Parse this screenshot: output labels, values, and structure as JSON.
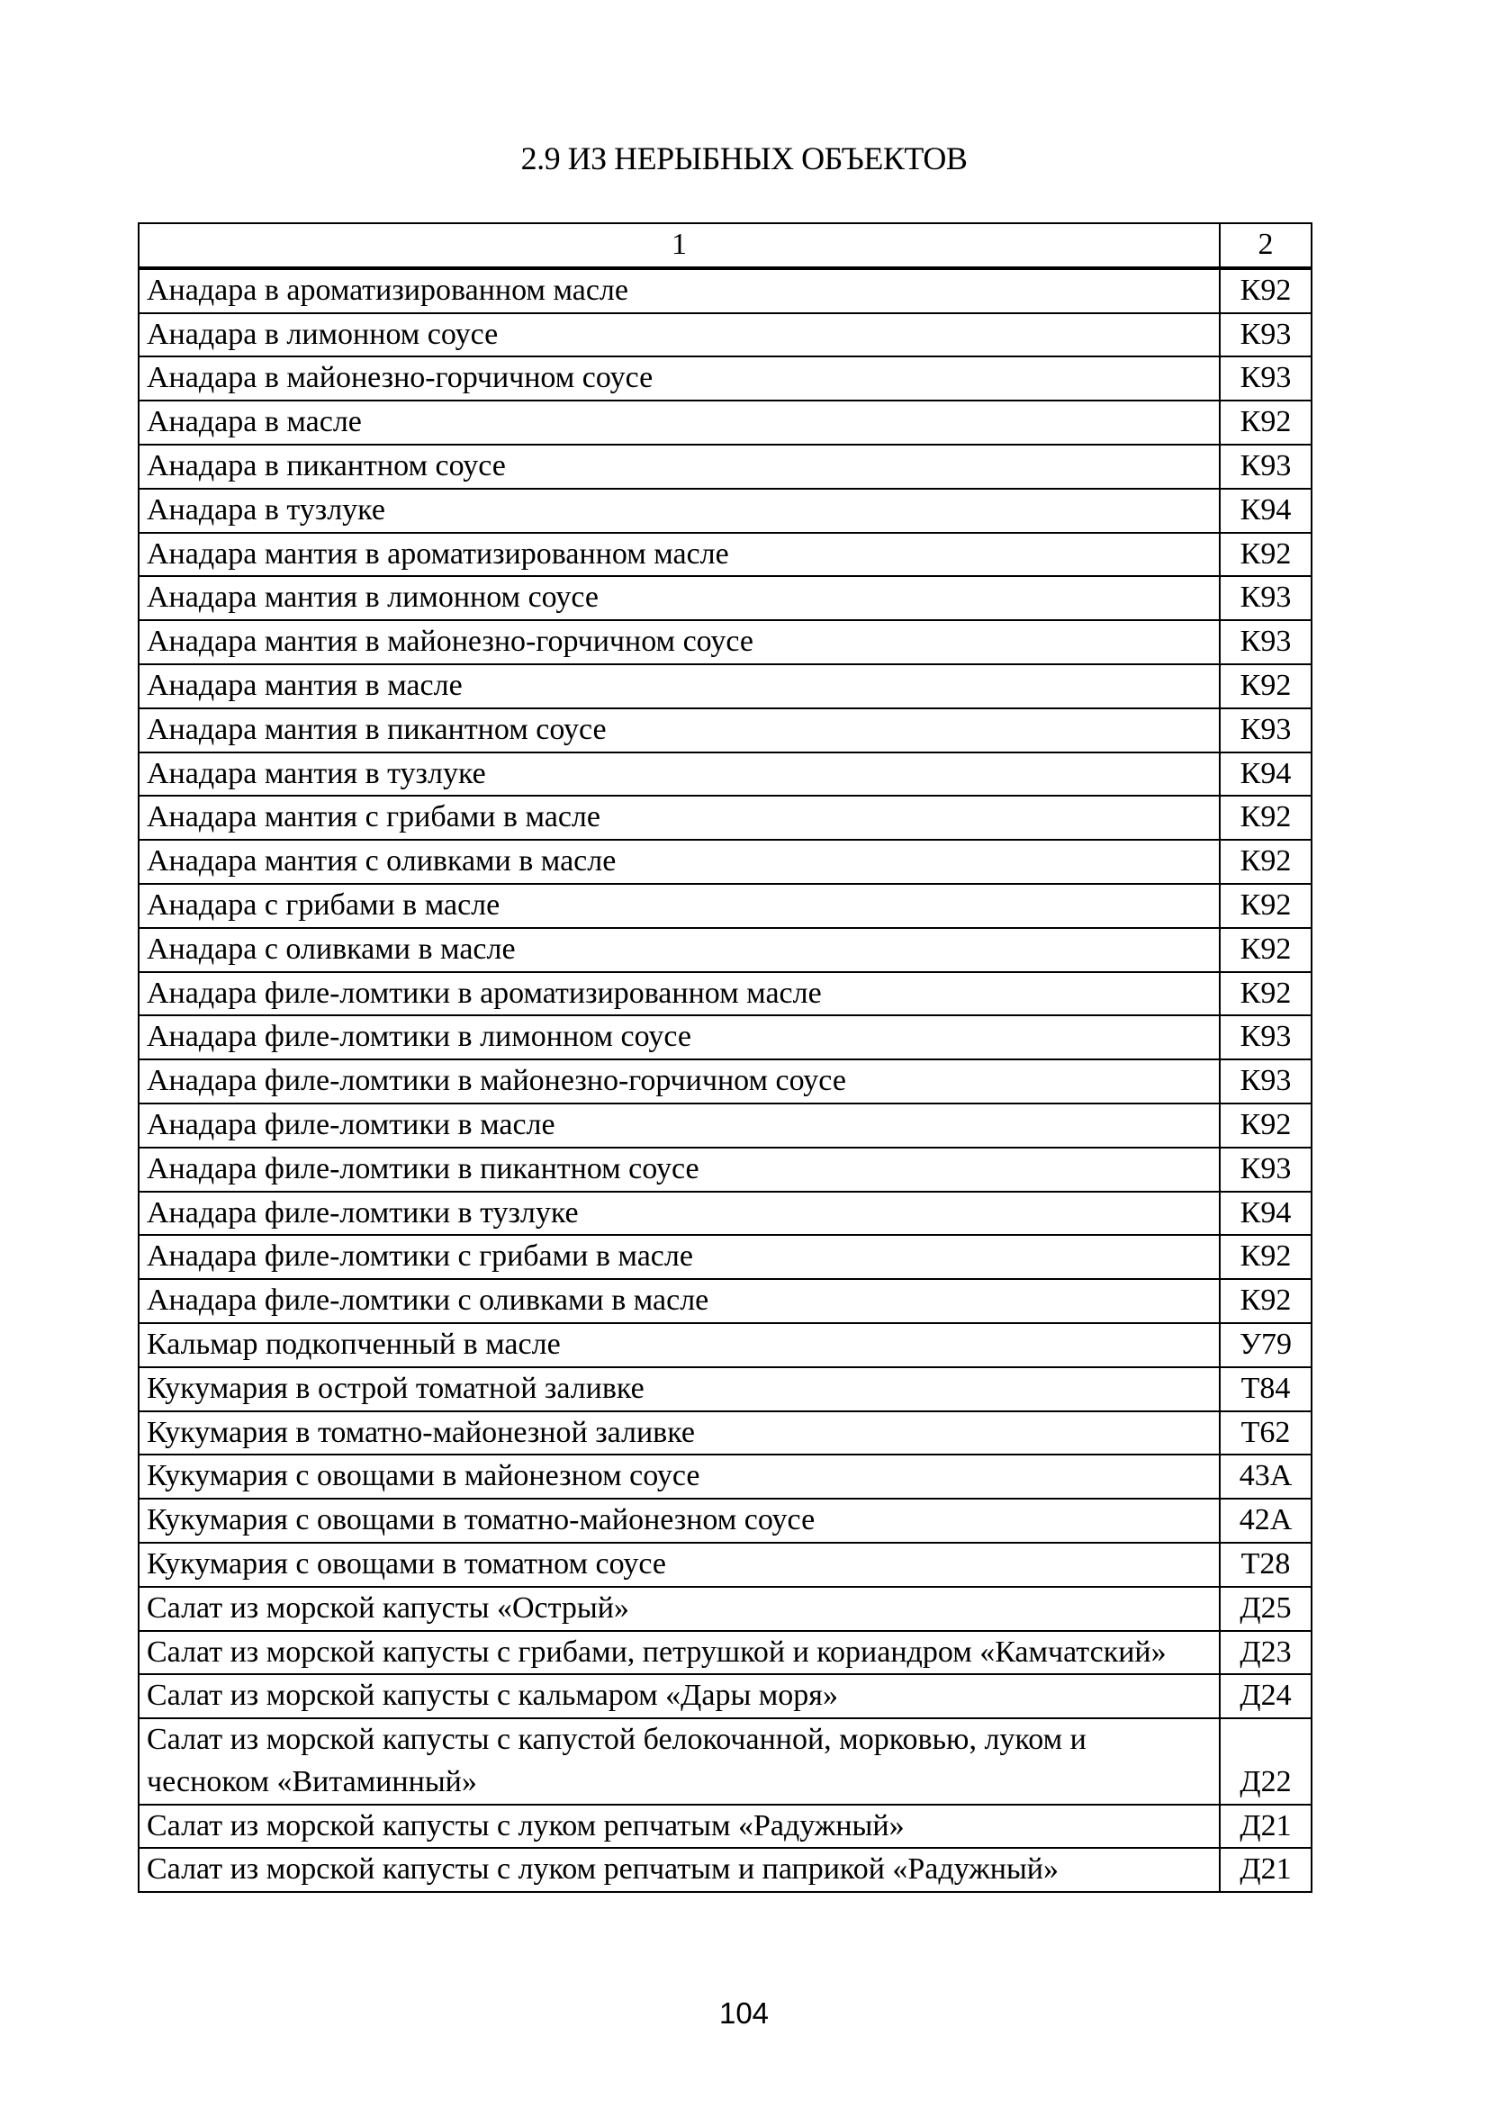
{
  "title": "2.9 ИЗ НЕРЫБНЫХ ОБЪЕКТОВ",
  "table": {
    "headers": [
      "1",
      "2"
    ],
    "rows": [
      [
        "Анадара в ароматизированном масле",
        "К92"
      ],
      [
        "Анадара в лимонном соусе",
        "К93"
      ],
      [
        "Анадара в майонезно-горчичном соусе",
        "К93"
      ],
      [
        "Анадара в масле",
        "К92"
      ],
      [
        "Анадара в пикантном соусе",
        "К93"
      ],
      [
        "Анадара в тузлуке",
        "К94"
      ],
      [
        "Анадара мантия в ароматизированном масле",
        "К92"
      ],
      [
        "Анадара мантия в лимонном соусе",
        "К93"
      ],
      [
        "Анадара мантия в майонезно-горчичном соусе",
        "К93"
      ],
      [
        "Анадара мантия в масле",
        "К92"
      ],
      [
        "Анадара мантия в пикантном соусе",
        "К93"
      ],
      [
        "Анадара мантия в тузлуке",
        "К94"
      ],
      [
        "Анадара мантия с грибами в масле",
        "К92"
      ],
      [
        "Анадара мантия с оливками в масле",
        "К92"
      ],
      [
        "Анадара с грибами в масле",
        "К92"
      ],
      [
        "Анадара с оливками в масле",
        "К92"
      ],
      [
        "Анадара филе-ломтики в ароматизированном масле",
        "К92"
      ],
      [
        "Анадара филе-ломтики в лимонном соусе",
        "К93"
      ],
      [
        "Анадара филе-ломтики в майонезно-горчичном соусе",
        "К93"
      ],
      [
        "Анадара филе-ломтики в масле",
        "К92"
      ],
      [
        "Анадара филе-ломтики в пикантном соусе",
        "К93"
      ],
      [
        "Анадара филе-ломтики в тузлуке",
        "К94"
      ],
      [
        "Анадара филе-ломтики с грибами в масле",
        "К92"
      ],
      [
        "Анадара филе-ломтики с оливками в масле",
        "К92"
      ],
      [
        "Кальмар подкопченный в масле",
        "У79"
      ],
      [
        "Кукумария в острой томатной заливке",
        "Т84"
      ],
      [
        "Кукумария в томатно-майонезной заливке",
        "Т62"
      ],
      [
        "Кукумария с овощами в майонезном соусе",
        "43А"
      ],
      [
        "Кукумария с овощами в томатно-майонезном соусе",
        "42А"
      ],
      [
        "Кукумария с овощами в томатном соусе",
        "Т28"
      ],
      [
        "Салат из морской капусты «Острый»",
        "Д25"
      ],
      [
        "Салат из морской капусты с грибами, петрушкой и кориандром «Камчатский»",
        "Д23"
      ],
      [
        "Салат из морской капусты с кальмаром «Дары моря»",
        "Д24"
      ],
      [
        "Салат из морской капусты с капустой белокочанной, морковью, луком и чесноком «Витаминный»",
        "Д22"
      ],
      [
        "Салат из морской капусты с луком репчатым «Радужный»",
        "Д21"
      ],
      [
        "Салат из морской капусты с луком репчатым и паприкой «Радужный»",
        "Д21"
      ]
    ]
  },
  "page_number": "104"
}
